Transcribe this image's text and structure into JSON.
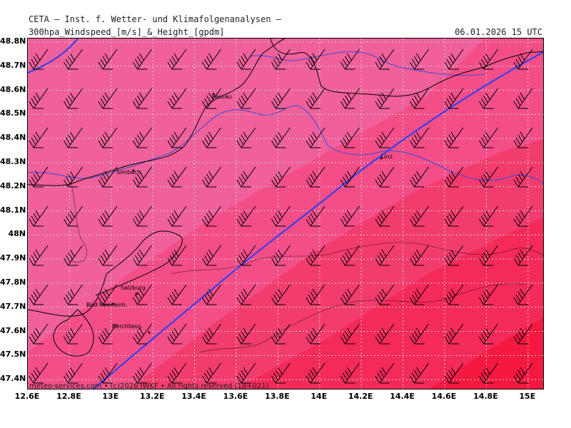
{
  "header": {
    "org_line": "CETA — Inst. f. Wetter- und Klimafolgenanalysen —",
    "product": "300hpa_Windspeed_[m/s]_&_Height_[gpdm]",
    "valid_time": "06.01.2026 15 UTC"
  },
  "axes": {
    "lat_labels": [
      "48.8N",
      "48.7N",
      "48.6N",
      "48.5N",
      "48.4N",
      "48.3N",
      "48.2N",
      "48.1N",
      "48N",
      "47.9N",
      "47.8N",
      "47.7N",
      "47.6N",
      "47.5N",
      "47.4N"
    ],
    "lon_labels": [
      "12.6E",
      "12.8E",
      "13E",
      "13.2E",
      "13.4E",
      "13.6E",
      "13.8E",
      "14E",
      "14.2E",
      "14.4E",
      "14.6E",
      "14.8E",
      "15E"
    ]
  },
  "cities": [
    "Passau",
    "Simbach",
    "Linz",
    "Salzburg",
    "Bad Reichenh.",
    "Berchtesg."
  ],
  "copyright": "meteo-services.com • (c)2026 IWKF • All rights reserved (18+021)",
  "colors": {
    "band_light": "#f0609a",
    "band_mid": "#f34e88",
    "band_strong": "#f33c6e",
    "band_stronger": "#f42a58",
    "band_max": "#f51840",
    "height_contour": "#2a3ff0",
    "border": "#000000",
    "river": "#3b49d8",
    "grid": "#cfcfcf"
  }
}
